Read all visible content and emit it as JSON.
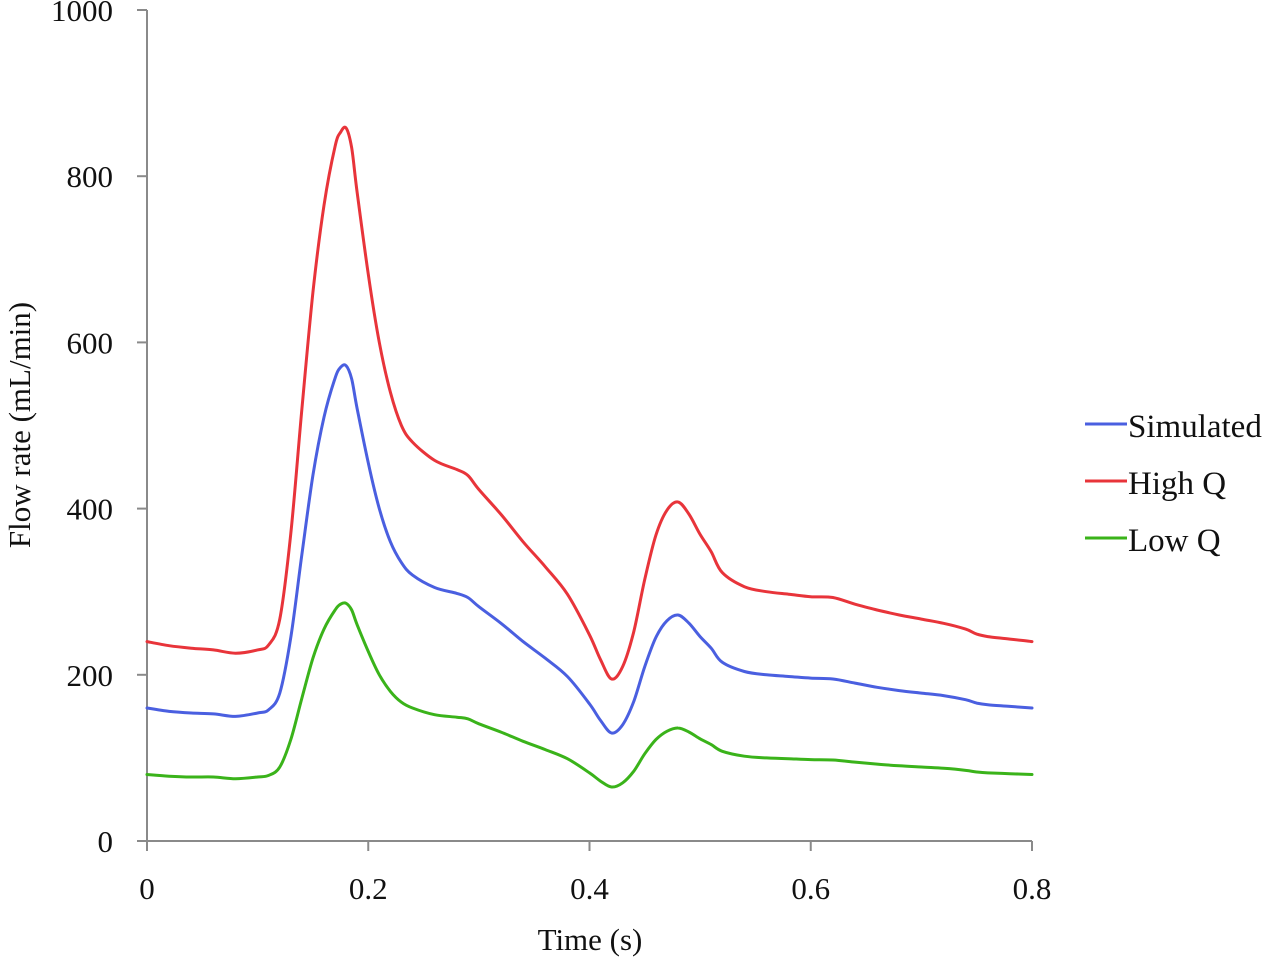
{
  "chart_data": {
    "type": "line",
    "title": "",
    "xlabel": "Time (s)",
    "ylabel": "Flow rate (mL/min)",
    "xlim": [
      0,
      0.8
    ],
    "ylim": [
      0,
      1000
    ],
    "xticks": [
      0,
      0.2,
      0.4,
      0.6,
      0.8
    ],
    "xtick_labels": [
      "0",
      "0.2",
      "0.4",
      "0.6",
      "0.8"
    ],
    "yticks": [
      0,
      200,
      400,
      600,
      800,
      1000
    ],
    "ytick_labels": [
      "0",
      "200",
      "400",
      "600",
      "800",
      "1000"
    ],
    "grid": false,
    "legend_position": "right",
    "x": [
      0,
      0.02,
      0.04,
      0.06,
      0.08,
      0.1,
      0.11,
      0.12,
      0.13,
      0.14,
      0.15,
      0.16,
      0.17,
      0.175,
      0.18,
      0.185,
      0.19,
      0.2,
      0.21,
      0.22,
      0.23,
      0.24,
      0.26,
      0.28,
      0.29,
      0.3,
      0.32,
      0.34,
      0.36,
      0.38,
      0.4,
      0.41,
      0.42,
      0.43,
      0.44,
      0.45,
      0.46,
      0.47,
      0.48,
      0.49,
      0.5,
      0.51,
      0.52,
      0.54,
      0.56,
      0.58,
      0.6,
      0.62,
      0.64,
      0.66,
      0.68,
      0.7,
      0.72,
      0.74,
      0.75,
      0.76,
      0.78,
      0.8
    ],
    "series": [
      {
        "name": "Simulated",
        "color": "#4a5fe0",
        "values": [
          160,
          156,
          154,
          153,
          150,
          154,
          158,
          178,
          245,
          345,
          440,
          510,
          557,
          570,
          572,
          556,
          520,
          455,
          400,
          360,
          335,
          320,
          305,
          298,
          293,
          282,
          262,
          240,
          220,
          198,
          165,
          145,
          130,
          140,
          168,
          210,
          245,
          265,
          272,
          262,
          246,
          232,
          215,
          204,
          200,
          198,
          196,
          195,
          190,
          185,
          181,
          178,
          175,
          170,
          166,
          164,
          162,
          160
        ]
      },
      {
        "name": "High Q",
        "color": "#e8343a",
        "values": [
          240,
          235,
          232,
          230,
          226,
          230,
          236,
          267,
          370,
          520,
          660,
          765,
          836,
          853,
          858,
          834,
          780,
          682,
          600,
          540,
          500,
          480,
          458,
          447,
          440,
          423,
          393,
          360,
          330,
          297,
          248,
          218,
          195,
          210,
          252,
          315,
          368,
          398,
          408,
          393,
          369,
          348,
          323,
          306,
          300,
          297,
          294,
          293,
          285,
          278,
          272,
          267,
          262,
          255,
          249,
          246,
          243,
          240
        ]
      },
      {
        "name": "Low Q",
        "color": "#3ab31a",
        "values": [
          80,
          78,
          77,
          77,
          75,
          77,
          79,
          89,
          122,
          172,
          220,
          255,
          278,
          285,
          286,
          278,
          260,
          228,
          200,
          180,
          167,
          160,
          152,
          149,
          147,
          141,
          131,
          120,
          110,
          99,
          82,
          72,
          65,
          70,
          84,
          105,
          122,
          132,
          136,
          131,
          123,
          116,
          108,
          102,
          100,
          99,
          98,
          97.5,
          95,
          92.5,
          90.5,
          89,
          87.5,
          85,
          83,
          82,
          81,
          80
        ]
      }
    ]
  }
}
